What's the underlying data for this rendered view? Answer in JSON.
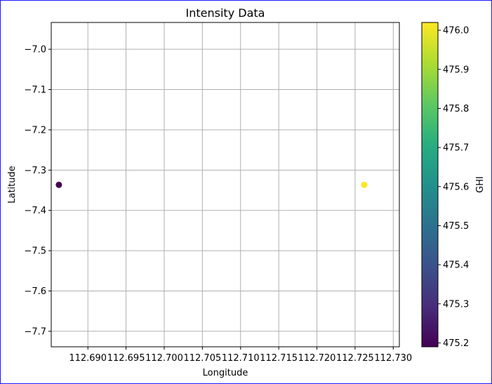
{
  "chart_data": {
    "type": "scatter",
    "title": "Intensity Data",
    "xlabel": "Longitude",
    "ylabel": "Latitude",
    "xlim": [
      112.6852,
      112.7308
    ],
    "ylim": [
      -7.7385,
      -6.9335
    ],
    "xticks": [
      112.69,
      112.695,
      112.7,
      112.705,
      112.71,
      112.715,
      112.72,
      112.725,
      112.73
    ],
    "xtick_labels": [
      "112.690",
      "112.695",
      "112.700",
      "112.705",
      "112.710",
      "112.715",
      "112.720",
      "112.725",
      "112.730"
    ],
    "yticks": [
      -7.0,
      -7.1,
      -7.2,
      -7.3,
      -7.4,
      -7.5,
      -7.6,
      -7.7
    ],
    "ytick_labels": [
      "−7.0",
      "−7.1",
      "−7.2",
      "−7.3",
      "−7.4",
      "−7.5",
      "−7.6",
      "−7.7"
    ],
    "grid": true,
    "points": [
      {
        "x": 112.6862,
        "y": -7.3365,
        "value": 475.19
      },
      {
        "x": 112.7262,
        "y": -7.3365,
        "value": 476.02
      }
    ],
    "colorbar": {
      "label": "GHI",
      "colormap": "viridis",
      "range": [
        475.19,
        476.02
      ],
      "ticks": [
        475.2,
        475.3,
        475.4,
        475.5,
        475.6,
        475.7,
        475.8,
        475.9,
        476.0
      ],
      "tick_labels": [
        "475.2",
        "475.3",
        "475.4",
        "475.5",
        "475.6",
        "475.7",
        "475.8",
        "475.9",
        "476.0"
      ]
    }
  }
}
